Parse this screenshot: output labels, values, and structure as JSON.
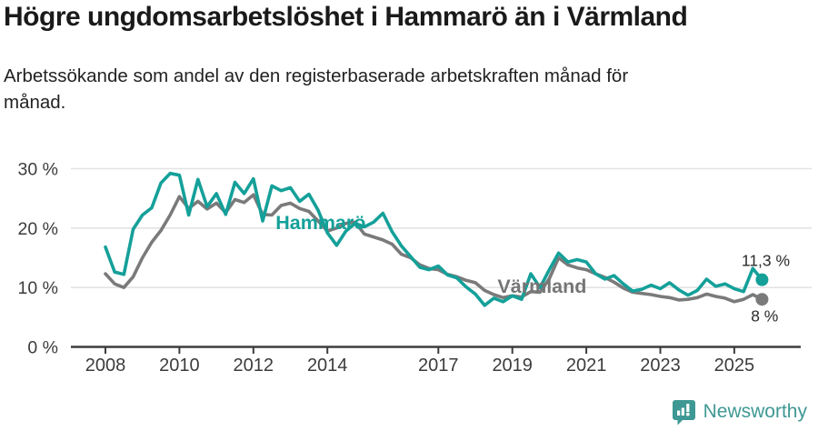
{
  "header": {
    "title": "Högre ungdomsarbetslöshet i Hammarö än i Värmland",
    "subtitle": "Arbetssökande som andel av den registerbaserade arbetskraften månad för månad."
  },
  "chart_data": {
    "type": "line",
    "title": "Högre ungdomsarbetslöshet i Hammarö än i Värmland",
    "subtitle": "Arbetssökande som andel av den registerbaserade arbetskraften månad för månad.",
    "unit": "%",
    "grid": "horizontal",
    "xlim": [
      2008,
      2025.75
    ],
    "ylim": [
      0,
      30
    ],
    "x": [
      2008,
      2008.25,
      2008.5,
      2008.75,
      2009,
      2009.25,
      2009.5,
      2009.75,
      2010,
      2010.25,
      2010.5,
      2010.75,
      2011,
      2011.25,
      2011.5,
      2011.75,
      2012,
      2012.25,
      2012.5,
      2012.75,
      2013,
      2013.25,
      2013.5,
      2013.75,
      2014,
      2014.25,
      2014.5,
      2014.75,
      2015,
      2015.25,
      2015.5,
      2015.75,
      2016,
      2016.25,
      2016.5,
      2016.75,
      2017,
      2017.25,
      2017.5,
      2017.75,
      2018,
      2018.25,
      2018.5,
      2018.75,
      2019,
      2019.25,
      2019.5,
      2019.75,
      2020,
      2020.25,
      2020.5,
      2020.75,
      2021,
      2021.25,
      2021.5,
      2021.75,
      2022,
      2022.25,
      2022.5,
      2022.75,
      2023,
      2023.25,
      2023.5,
      2023.75,
      2024,
      2024.25,
      2024.5,
      2024.75,
      2025,
      2025.25,
      2025.5,
      2025.75
    ],
    "series": [
      {
        "name": "Hammarö",
        "color": "#14a099",
        "values": [
          16.8,
          12.6,
          12.2,
          19.8,
          22.2,
          23.4,
          27.6,
          29.2,
          28.9,
          22.2,
          28.2,
          23.6,
          25.8,
          22.3,
          27.7,
          25.8,
          28.3,
          21.2,
          27.1,
          26.3,
          26.8,
          24.5,
          25.7,
          23.0,
          19.2,
          17.1,
          19.5,
          20.8,
          20.2,
          21.0,
          22.5,
          19.4,
          17.0,
          15.2,
          13.4,
          13.0,
          13.6,
          12.1,
          11.6,
          10.1,
          8.9,
          7.0,
          8.2,
          7.6,
          8.6,
          8.0,
          12.3,
          10.0,
          13.0,
          15.8,
          14.3,
          14.7,
          14.3,
          12.3,
          11.4,
          12.0,
          10.6,
          9.4,
          9.7,
          10.4,
          9.8,
          10.8,
          9.6,
          8.7,
          9.5,
          11.4,
          10.2,
          10.6,
          9.8,
          9.3,
          13.2,
          11.3
        ]
      },
      {
        "name": "Värmland",
        "color": "#7a7a7a",
        "values": [
          12.3,
          10.6,
          10.0,
          11.8,
          15.0,
          17.6,
          19.6,
          22.2,
          25.3,
          23.3,
          24.5,
          23.2,
          24.2,
          22.6,
          24.8,
          24.3,
          25.6,
          22.3,
          22.2,
          23.8,
          24.2,
          23.3,
          22.8,
          21.2,
          19.5,
          20.0,
          20.8,
          21.0,
          19.0,
          18.5,
          18.0,
          17.3,
          15.6,
          15.0,
          13.8,
          13.2,
          13.0,
          12.2,
          11.8,
          11.2,
          10.8,
          9.5,
          8.8,
          8.3,
          8.6,
          8.4,
          9.3,
          9.2,
          11.5,
          15.0,
          13.8,
          13.3,
          13.0,
          12.3,
          11.7,
          10.9,
          9.9,
          9.2,
          9.0,
          8.8,
          8.5,
          8.3,
          7.9,
          8.0,
          8.3,
          8.9,
          8.5,
          8.2,
          7.6,
          8.0,
          8.8,
          8.0
        ]
      }
    ],
    "yticks": [
      {
        "value": 0,
        "label": "0 %"
      },
      {
        "value": 10,
        "label": "10 %"
      },
      {
        "value": 20,
        "label": "20 %"
      },
      {
        "value": 30,
        "label": "30 %"
      }
    ],
    "xticks": [
      {
        "value": 2008,
        "label": "2008"
      },
      {
        "value": 2010,
        "label": "2010"
      },
      {
        "value": 2012,
        "label": "2012"
      },
      {
        "value": 2014,
        "label": "2014"
      },
      {
        "value": 2017,
        "label": "2017"
      },
      {
        "value": 2019,
        "label": "2019"
      },
      {
        "value": 2021,
        "label": "2021"
      },
      {
        "value": 2023,
        "label": "2023"
      },
      {
        "value": 2025,
        "label": "2025"
      }
    ],
    "series_labels": [
      {
        "text": "Hammarö",
        "year": 2012.6,
        "value": 19.8,
        "color": "#14a099"
      },
      {
        "text": "Värmland",
        "year": 2018.6,
        "value": 9.1,
        "color": "#757575"
      }
    ],
    "value_labels": [
      {
        "text": "11,3 %",
        "year": 2025.85,
        "value": 13.6,
        "color": "#2b2b2b"
      },
      {
        "text": "8 %",
        "year": 2025.82,
        "value": 4.3,
        "color": "#2b2b2b"
      }
    ],
    "end_points": [
      {
        "series": "Hammarö",
        "label": "11,3 %",
        "value": 11.3
      },
      {
        "series": "Värmland",
        "label": "8 %",
        "value": 8.0
      }
    ],
    "legend_position": "inline-labels"
  },
  "footer": {
    "brand": "Newsworthy",
    "brand_color": "#3E9894",
    "logo_icon": "newsworthy-bar-chart-bubble-icon"
  }
}
